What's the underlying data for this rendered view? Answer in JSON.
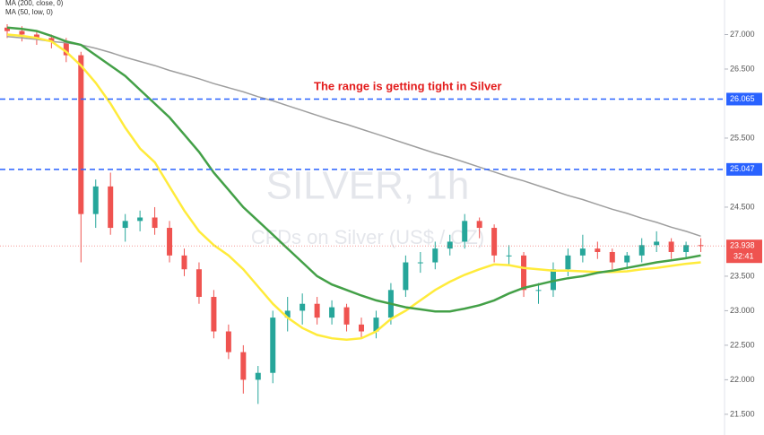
{
  "chart_data": {
    "type": "candlestick",
    "title": "SILVER, 1h",
    "subtitle": "CFDs on Silver (US$ / OZ)",
    "annotation": "The range is getting tight in Silver",
    "categories": [
      null,
      null,
      null,
      null,
      null,
      null,
      null,
      null,
      null,
      null,
      null,
      null,
      null,
      null,
      null,
      null,
      null,
      null,
      null,
      null,
      null,
      null,
      null,
      null,
      null,
      null,
      null,
      null,
      null,
      null,
      null,
      null,
      null,
      null,
      null,
      null,
      null,
      null,
      null,
      null,
      null,
      null,
      null,
      null,
      null,
      null,
      null,
      null
    ],
    "open": [
      27.1,
      27.05,
      27.0,
      26.95,
      26.9,
      26.7,
      24.4,
      24.8,
      24.2,
      24.3,
      24.35,
      24.2,
      23.8,
      23.6,
      23.2,
      22.7,
      22.4,
      22.0,
      22.1,
      22.9,
      23.0,
      23.1,
      22.9,
      23.05,
      22.8,
      22.7,
      22.9,
      23.3,
      23.7,
      23.7,
      23.9,
      24.0,
      24.3,
      24.2,
      23.8,
      23.8,
      23.3,
      23.3,
      23.6,
      23.8,
      23.9,
      23.85,
      23.7,
      23.8,
      23.95,
      24.0,
      23.85,
      23.95
    ],
    "high": [
      27.15,
      27.12,
      27.05,
      27.0,
      26.95,
      26.75,
      24.9,
      25.0,
      24.4,
      24.45,
      24.5,
      24.3,
      23.9,
      23.7,
      23.3,
      22.8,
      22.5,
      22.2,
      23.0,
      23.2,
      23.25,
      23.2,
      23.15,
      23.1,
      22.9,
      23.0,
      23.4,
      23.8,
      23.85,
      24.0,
      24.1,
      24.4,
      24.35,
      24.25,
      23.95,
      23.85,
      23.4,
      23.7,
      23.9,
      24.1,
      24.0,
      23.9,
      23.85,
      24.05,
      24.15,
      24.05,
      24.0,
      24.05
    ],
    "low": [
      26.95,
      26.9,
      26.85,
      26.8,
      26.6,
      23.7,
      24.2,
      24.1,
      24.0,
      24.15,
      24.1,
      23.7,
      23.5,
      23.1,
      22.6,
      22.3,
      21.8,
      21.65,
      21.95,
      22.7,
      22.8,
      22.8,
      22.8,
      22.7,
      22.6,
      22.6,
      22.8,
      23.2,
      23.55,
      23.6,
      23.8,
      23.9,
      24.05,
      23.7,
      23.65,
      23.2,
      23.1,
      23.2,
      23.5,
      23.7,
      23.75,
      23.6,
      23.6,
      23.7,
      23.85,
      23.75,
      23.75,
      23.85
    ],
    "close": [
      27.05,
      27.0,
      26.95,
      26.9,
      26.7,
      24.4,
      24.8,
      24.2,
      24.3,
      24.35,
      24.2,
      23.8,
      23.6,
      23.2,
      22.7,
      22.4,
      22.0,
      22.1,
      22.9,
      23.0,
      23.1,
      22.9,
      23.05,
      22.8,
      22.7,
      22.9,
      23.3,
      23.7,
      23.7,
      23.9,
      24.0,
      24.3,
      24.2,
      23.8,
      23.8,
      23.3,
      23.3,
      23.6,
      23.8,
      23.9,
      23.85,
      23.7,
      23.8,
      23.95,
      24.0,
      23.85,
      23.95,
      23.94
    ],
    "up_color": "#26a69a",
    "down_color": "#ef5350",
    "series": [
      {
        "name": "MA (200, close, 0)",
        "color": "#9e9e9e",
        "values": [
          26.97,
          26.95,
          26.93,
          26.9,
          26.88,
          26.85,
          26.8,
          26.74,
          26.67,
          26.61,
          26.55,
          26.48,
          26.42,
          26.36,
          26.29,
          26.23,
          26.17,
          26.1,
          26.04,
          25.97,
          25.9,
          25.83,
          25.76,
          25.7,
          25.63,
          25.56,
          25.49,
          25.42,
          25.35,
          25.28,
          25.22,
          25.15,
          25.08,
          25.01,
          24.94,
          24.88,
          24.81,
          24.74,
          24.67,
          24.61,
          24.54,
          24.47,
          24.41,
          24.34,
          24.28,
          24.21,
          24.15,
          24.08
        ]
      },
      {
        "name": "MA (50, low, 0)",
        "color": "#ffeb3b",
        "values": [
          27.0,
          26.98,
          26.95,
          26.9,
          26.75,
          26.55,
          26.3,
          26.0,
          25.65,
          25.35,
          25.15,
          24.8,
          24.45,
          24.15,
          23.95,
          23.8,
          23.6,
          23.35,
          23.1,
          22.9,
          22.75,
          22.65,
          22.6,
          22.58,
          22.6,
          22.7,
          22.88,
          23.0,
          23.15,
          23.3,
          23.42,
          23.52,
          23.6,
          23.67,
          23.66,
          23.62,
          23.6,
          23.58,
          23.58,
          23.57,
          23.56,
          23.56,
          23.57,
          23.6,
          23.62,
          23.65,
          23.68,
          23.7
        ]
      },
      {
        "color": "#43a047",
        "values": [
          27.1,
          27.08,
          27.05,
          26.98,
          26.9,
          26.85,
          26.7,
          26.55,
          26.4,
          26.2,
          26.0,
          25.8,
          25.55,
          25.3,
          25.0,
          24.75,
          24.5,
          24.3,
          24.1,
          23.9,
          23.7,
          23.5,
          23.38,
          23.3,
          23.22,
          23.15,
          23.1,
          23.05,
          23.02,
          22.99,
          22.99,
          23.03,
          23.08,
          23.15,
          23.25,
          23.33,
          23.38,
          23.43,
          23.47,
          23.5,
          23.55,
          23.58,
          23.62,
          23.66,
          23.7,
          23.73,
          23.76,
          23.8
        ]
      }
    ],
    "levels": [
      {
        "value": 26.065,
        "label": "26.065",
        "color": "#2962ff"
      },
      {
        "value": 25.047,
        "label": "25.047",
        "color": "#2962ff"
      }
    ],
    "last_price": {
      "value": 23.938,
      "label": "23.938",
      "color": "#ef5350",
      "countdown": "32:41"
    },
    "ylim": [
      21.2,
      27.5
    ],
    "yticks": [
      {
        "value": 27,
        "label": "27.000"
      },
      {
        "value": 26.5,
        "label": "26.500"
      },
      {
        "value": 25.5,
        "label": "25.500"
      },
      {
        "value": 24.5,
        "label": "24.500"
      },
      {
        "value": 23.5,
        "label": "23.500"
      },
      {
        "value": 23,
        "label": "23.000"
      },
      {
        "value": 22.5,
        "label": "22.500"
      },
      {
        "value": 22,
        "label": "22.000"
      },
      {
        "value": 21.5,
        "label": "21.500"
      }
    ]
  }
}
